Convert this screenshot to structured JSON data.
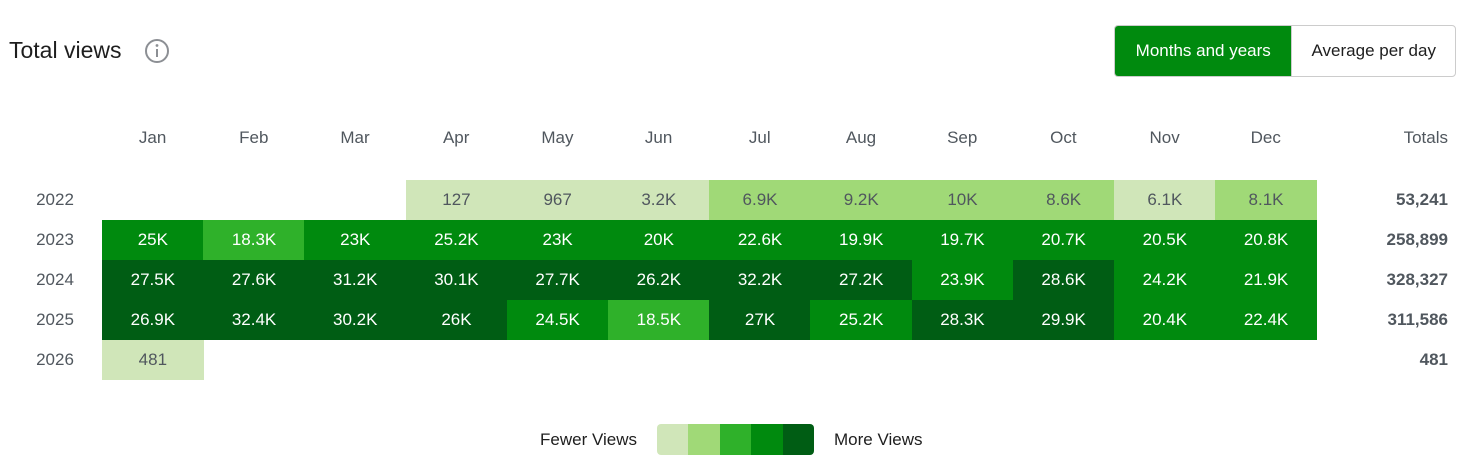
{
  "header": {
    "title": "Total views",
    "tabs": [
      "Months and years",
      "Average per day"
    ],
    "active_tab_color": "#008a0e"
  },
  "table": {
    "columns": [
      "Jan",
      "Feb",
      "Mar",
      "Apr",
      "May",
      "Jun",
      "Jul",
      "Aug",
      "Sep",
      "Oct",
      "Nov",
      "Dec"
    ],
    "totals_label": "Totals",
    "rows": [
      {
        "year": "2022",
        "cells": [
          null,
          null,
          null,
          "127",
          "967",
          "3.2K",
          "6.9K",
          "9.2K",
          "10K",
          "8.6K",
          "6.1K",
          "8.1K"
        ],
        "levels": [
          null,
          null,
          null,
          0,
          0,
          0,
          1,
          1,
          1,
          1,
          0,
          1
        ],
        "total": "53,241"
      },
      {
        "year": "2023",
        "cells": [
          "25K",
          "18.3K",
          "23K",
          "25.2K",
          "23K",
          "20K",
          "22.6K",
          "19.9K",
          "19.7K",
          "20.7K",
          "20.5K",
          "20.8K"
        ],
        "levels": [
          3,
          2,
          3,
          3,
          3,
          3,
          3,
          3,
          3,
          3,
          3,
          3
        ],
        "total": "258,899"
      },
      {
        "year": "2024",
        "cells": [
          "27.5K",
          "27.6K",
          "31.2K",
          "30.1K",
          "27.7K",
          "26.2K",
          "32.2K",
          "27.2K",
          "23.9K",
          "28.6K",
          "24.2K",
          "21.9K"
        ],
        "levels": [
          4,
          4,
          4,
          4,
          4,
          4,
          4,
          4,
          3,
          4,
          3,
          3
        ],
        "total": "328,327"
      },
      {
        "year": "2025",
        "cells": [
          "26.9K",
          "32.4K",
          "30.2K",
          "26K",
          "24.5K",
          "18.5K",
          "27K",
          "25.2K",
          "28.3K",
          "29.9K",
          "20.4K",
          "22.4K"
        ],
        "levels": [
          4,
          4,
          4,
          4,
          3,
          2,
          4,
          3,
          4,
          4,
          3,
          3
        ],
        "total": "311,586"
      },
      {
        "year": "2026",
        "cells": [
          "481",
          null,
          null,
          null,
          null,
          null,
          null,
          null,
          null,
          null,
          null,
          null
        ],
        "levels": [
          0,
          null,
          null,
          null,
          null,
          null,
          null,
          null,
          null,
          null,
          null,
          null
        ],
        "total": "481"
      }
    ]
  },
  "legend": {
    "fewer": "Fewer Views",
    "more": "More Views",
    "colors": [
      "#d0e6b9",
      "#a0d977",
      "#2fb12a",
      "#008a0e",
      "#005d14"
    ]
  }
}
